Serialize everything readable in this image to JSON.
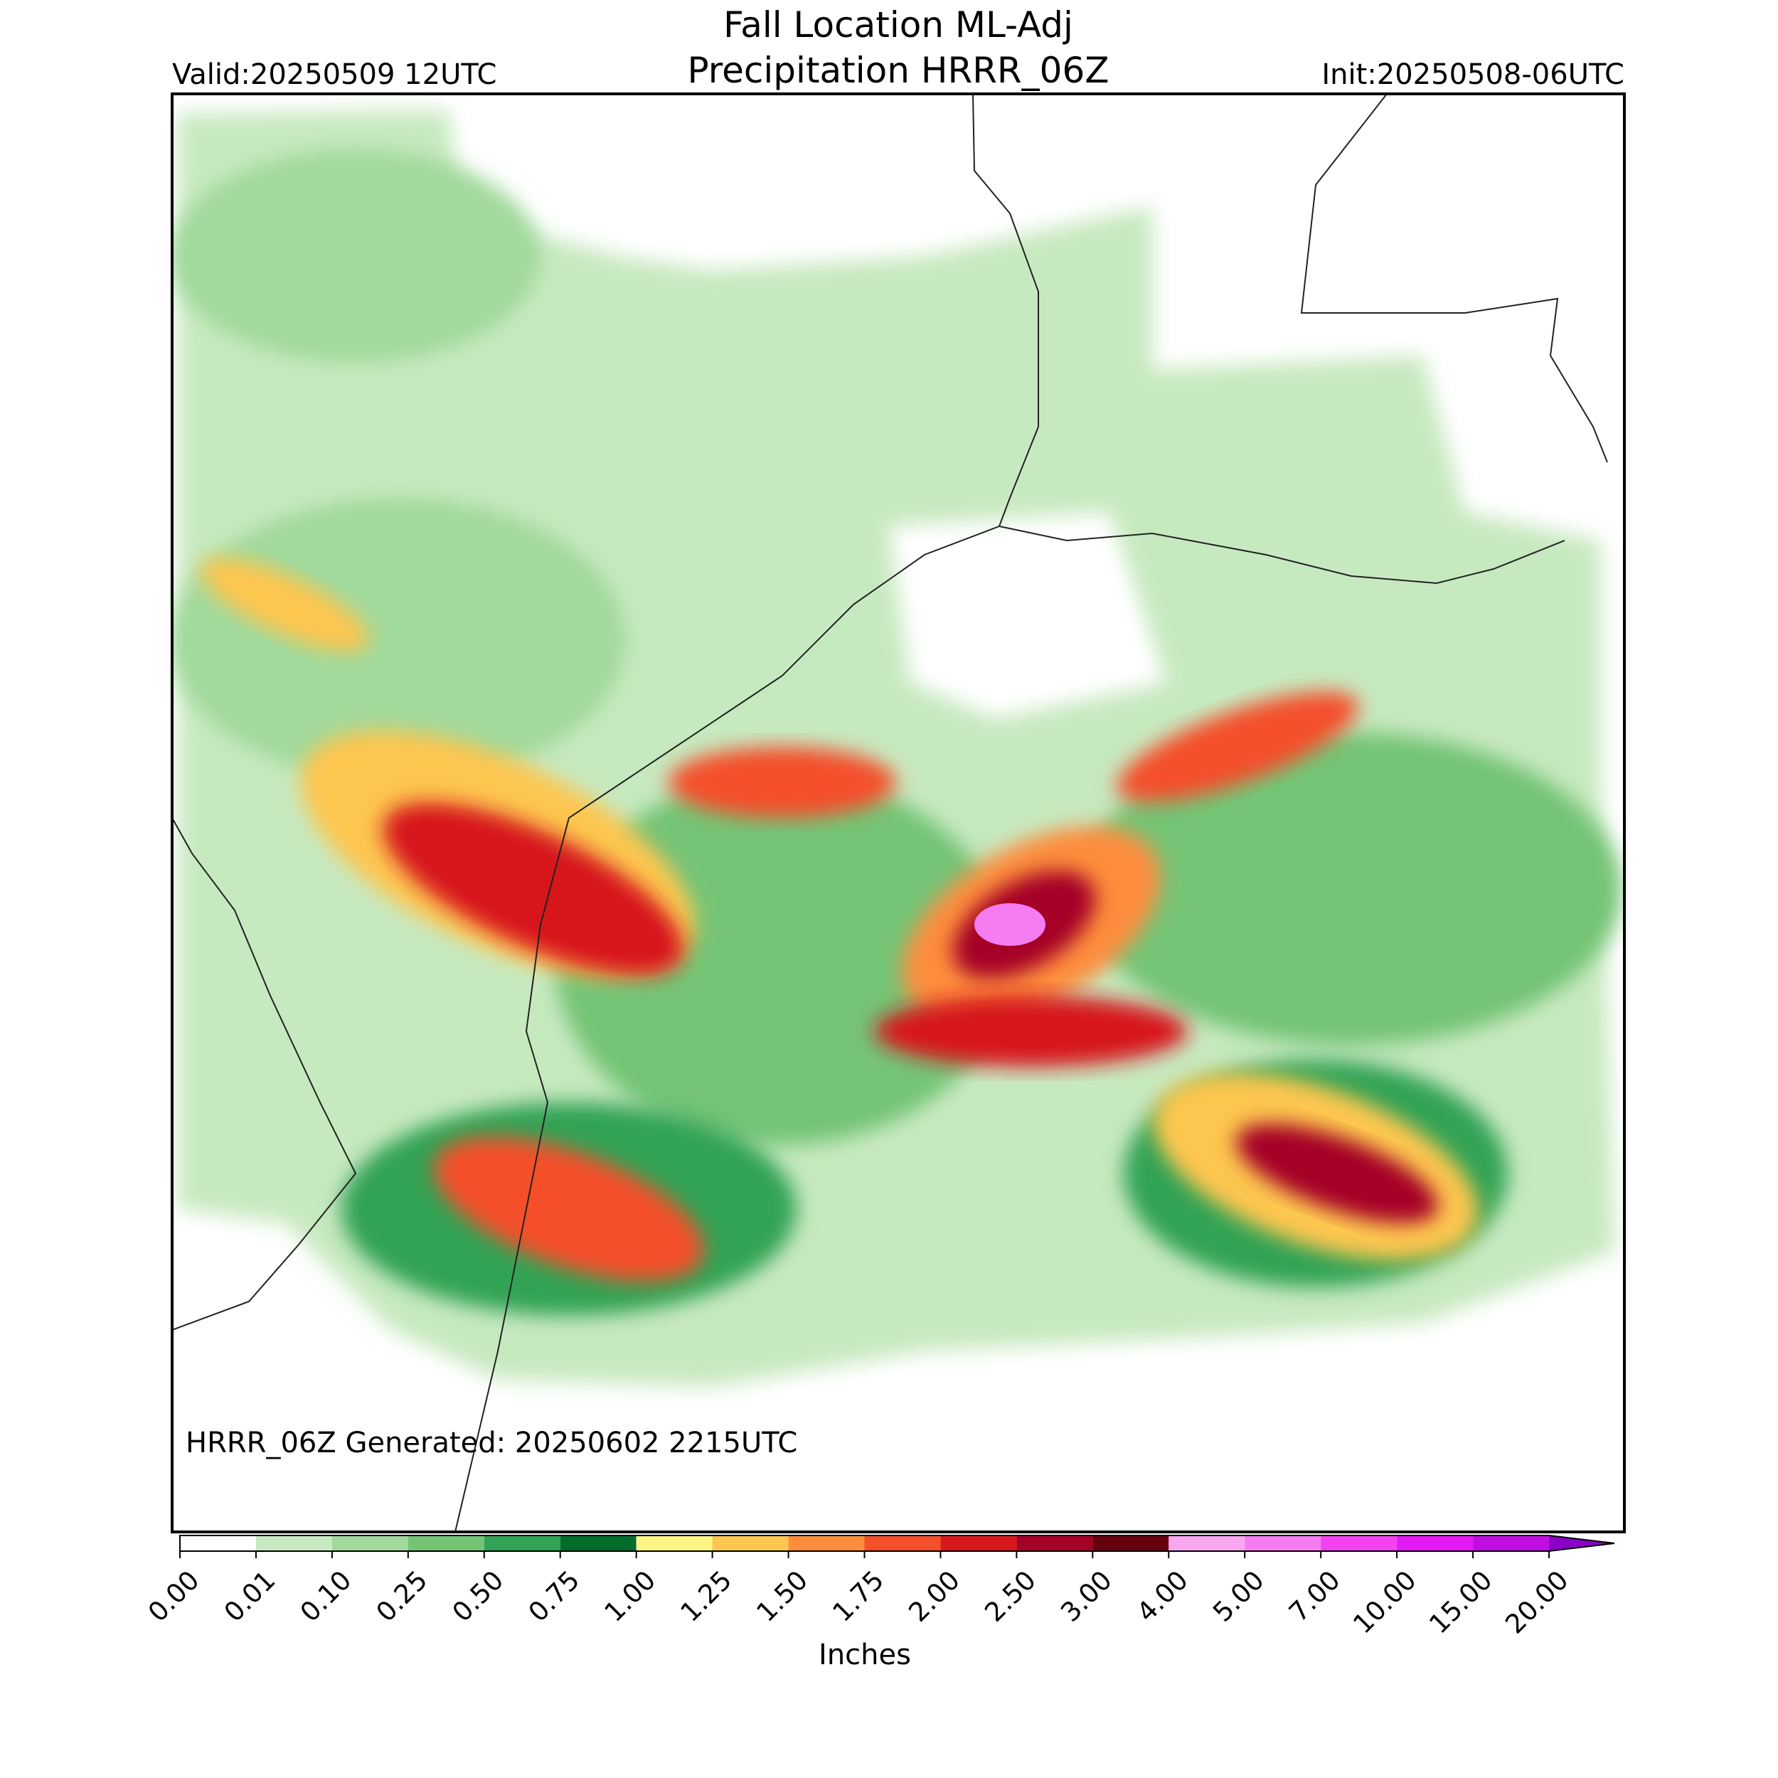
{
  "header": {
    "title": "Fall Location ML-Adj",
    "subtitle": "Precipitation HRRR_06Z",
    "valid": "Valid:20250509 12UTC",
    "init": "Init:20250508-06UTC"
  },
  "map": {
    "note": "HRRR_06Z Generated: 20250602 2215UTC"
  },
  "colorbar": {
    "label": "Inches",
    "ticks": [
      "0.00",
      "0.01",
      "0.10",
      "0.25",
      "0.50",
      "0.75",
      "1.00",
      "1.25",
      "1.50",
      "1.75",
      "2.00",
      "2.50",
      "3.00",
      "4.00",
      "5.00",
      "7.00",
      "10.00",
      "15.00",
      "20.00"
    ],
    "colors": [
      "#ffffff",
      "#c7e9c0",
      "#a1d99b",
      "#74c476",
      "#31a354",
      "#006d2c",
      "#fff685",
      "#fdc64f",
      "#fd8d3c",
      "#f4502a",
      "#d7191c",
      "#a50026",
      "#67000d",
      "#f7a8f0",
      "#f67cf2",
      "#f442f0",
      "#e418f5",
      "#c10de4"
    ],
    "over_color": "#8a00c9"
  }
}
